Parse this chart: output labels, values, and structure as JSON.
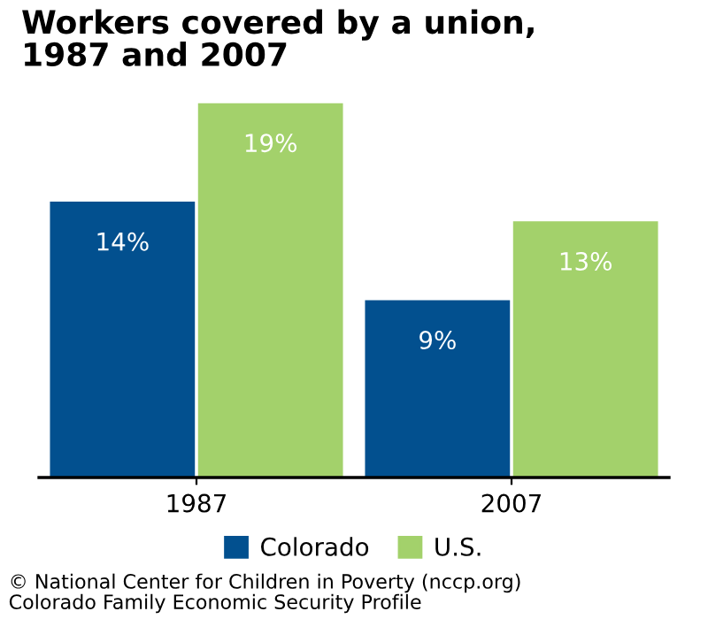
{
  "chart_data": {
    "type": "bar",
    "title": "Workers covered by a union,\n1987 and 2007",
    "categories": [
      "1987",
      "2007"
    ],
    "series": [
      {
        "name": "Colorado",
        "color": "#02508f",
        "values": [
          14,
          9
        ],
        "value_labels": [
          "14%",
          "9%"
        ]
      },
      {
        "name": "U.S.",
        "color": "#a3d16b",
        "values": [
          19,
          13
        ],
        "value_labels": [
          "19%",
          "13%"
        ]
      }
    ],
    "legend": "bottom",
    "annotations": [
      "© National Center for Children in Poverty (nccp.org)",
      "Colorado Family Economic Security Profile"
    ]
  }
}
